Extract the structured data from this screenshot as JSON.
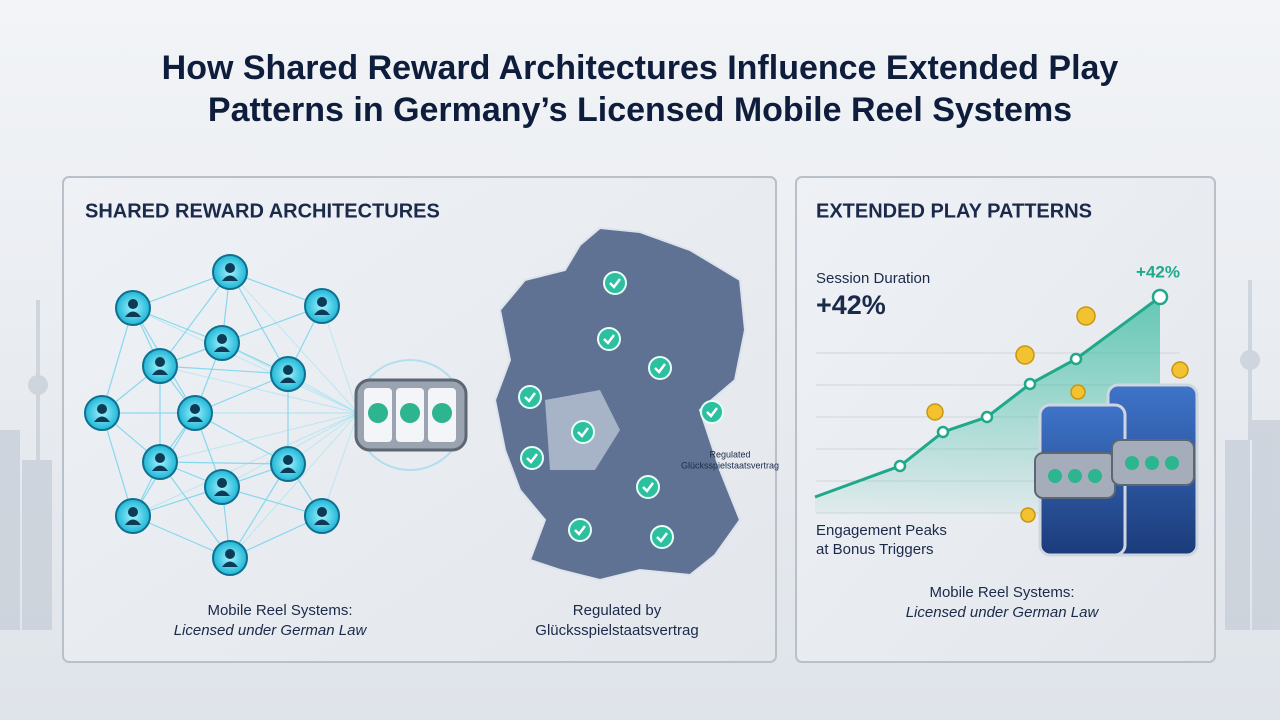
{
  "header": {
    "title_lines": [
      "How Shared Reward Architectures Influence Extended Play",
      "Patterns in Germany’s Licensed Mobile Reel Systems"
    ]
  },
  "left_panel": {
    "heading": "SHARED REWARD ARCHITECTURES",
    "map_label": [
      "Regulated",
      "Glücksspielstaatsvertrag"
    ],
    "caption_reel": [
      "Mobile Reel Systems:",
      "Licensed under German Law"
    ],
    "caption_map": [
      "Regulated by",
      "Glücksspielstaatsvertrag"
    ]
  },
  "right_panel": {
    "heading": "EXTENDED PLAY PATTERNS",
    "metric_label": "Session Duration",
    "metric_value": "+42%",
    "peak_label": "+42%",
    "note": [
      "Engagement Peaks",
      "at Bonus Triggers"
    ],
    "caption": [
      "Mobile Reel Systems:",
      "Licensed under German Law"
    ]
  }
}
